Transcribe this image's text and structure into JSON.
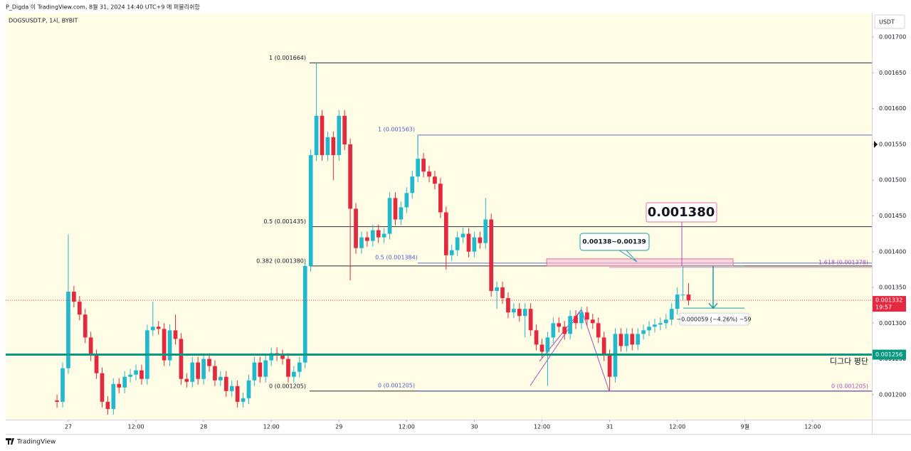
{
  "header": {
    "publisher": "P_Digda 이 TradingView.com, 8월 31, 2024 14:40 UTC+9 에 퍼블리쉬함",
    "brand": "TradingView"
  },
  "chart_data": {
    "type": "candlestick",
    "symbol": "DOGSUSDT.P, 1시, BYBIT",
    "currency": "USDT",
    "up_color": "#22b8cf",
    "down_color": "#e3283f",
    "xlim": [
      -11.1,
      142.5
    ],
    "xticks": [
      {
        "value": 0,
        "label": "27"
      },
      {
        "value": 12,
        "label": "12:00"
      },
      {
        "value": 24,
        "label": "28"
      },
      {
        "value": 36,
        "label": "12:00"
      },
      {
        "value": 48,
        "label": "29"
      },
      {
        "value": 60,
        "label": "12:00"
      },
      {
        "value": 72,
        "label": "30"
      },
      {
        "value": 84,
        "label": "12:00"
      },
      {
        "value": 96,
        "label": "31"
      },
      {
        "value": 108,
        "label": "12:00"
      },
      {
        "value": 120,
        "label": "9월"
      },
      {
        "value": 132,
        "label": "12:00"
      }
    ],
    "ylim": [
      0.001165,
      0.001734
    ],
    "yticks": [
      {
        "value": 0.0012,
        "label": "0.001200"
      },
      {
        "value": 0.00125,
        "label": "0.001250"
      },
      {
        "value": 0.0013,
        "label": "0.001300"
      },
      {
        "value": 0.00135,
        "label": "0.001350"
      },
      {
        "value": 0.0014,
        "label": "0.001400"
      },
      {
        "value": 0.00145,
        "label": "0.001450"
      },
      {
        "value": 0.0015,
        "label": "0.001500"
      },
      {
        "value": 0.00155,
        "label": "0.001550"
      },
      {
        "value": 0.0016,
        "label": "0.001600"
      },
      {
        "value": 0.00165,
        "label": "0.001650"
      },
      {
        "value": 0.0017,
        "label": "0.001700"
      }
    ],
    "grid": false,
    "x": [
      -2,
      -1,
      0,
      1,
      2,
      3,
      4,
      5,
      6,
      7,
      8,
      9,
      10,
      11,
      12,
      13,
      14,
      15,
      16,
      17,
      18,
      19,
      20,
      21,
      22,
      23,
      24,
      25,
      26,
      27,
      28,
      29,
      30,
      31,
      32,
      33,
      34,
      35,
      36,
      37,
      38,
      39,
      40,
      41,
      42,
      43,
      44,
      45,
      46,
      47,
      48,
      49,
      50,
      51,
      52,
      53,
      54,
      55,
      56,
      57,
      58,
      59,
      60,
      61,
      62,
      63,
      64,
      65,
      66,
      67,
      68,
      69,
      70,
      71,
      72,
      73,
      74,
      75,
      76,
      77,
      78,
      79,
      80,
      81,
      82,
      83,
      84,
      85,
      86,
      87,
      88,
      89,
      90,
      91,
      92,
      93,
      94,
      95,
      96,
      97,
      98,
      99,
      100,
      101,
      102,
      103,
      104,
      105,
      106,
      107,
      108,
      109,
      110
    ],
    "open": [
      0.001192,
      0.00119,
      0.001237,
      0.001344,
      0.00133,
      0.001312,
      0.00128,
      0.001255,
      0.00123,
      0.00119,
      0.00118,
      0.001215,
      0.00121,
      0.001225,
      0.001228,
      0.001234,
      0.001222,
      0.00129,
      0.001295,
      0.001292,
      0.001248,
      0.00129,
      0.001278,
      0.001222,
      0.001218,
      0.001245,
      0.001222,
      0.00125,
      0.00124,
      0.00122,
      0.001225,
      0.001205,
      0.001212,
      0.00119,
      0.001195,
      0.00122,
      0.001245,
      0.001225,
      0.001248,
      0.001258,
      0.001255,
      0.00125,
      0.001225,
      0.001232,
      0.001245,
      0.00138,
      0.001535,
      0.00159,
      0.001535,
      0.00156,
      0.001535,
      0.00159,
      0.00155,
      0.00146,
      0.001405,
      0.00142,
      0.001415,
      0.00143,
      0.00142,
      0.001425,
      0.001475,
      0.001445,
      0.001462,
      0.001482,
      0.001505,
      0.00153,
      0.001512,
      0.001505,
      0.001495,
      0.001455,
      0.001395,
      0.001402,
      0.00142,
      0.001425,
      0.0014,
      0.00142,
      0.001412,
      0.001445,
      0.001345,
      0.00135,
      0.001335,
      0.001315,
      0.00132,
      0.00131,
      0.00132,
      0.00129,
      0.00127,
      0.00126,
      0.00128,
      0.0013,
      0.001295,
      0.001285,
      0.00131,
      0.0013,
      0.001315,
      0.001305,
      0.0013,
      0.00128,
      0.001255,
      0.001225,
      0.001285,
      0.001268,
      0.001285,
      0.00127,
      0.001285,
      0.00129,
      0.001295,
      0.001298,
      0.0013,
      0.001305,
      0.00132,
      0.00134,
      0.00134
    ],
    "high": [
      0.0012,
      0.001245,
      0.001424,
      0.001352,
      0.001338,
      0.00132,
      0.001288,
      0.001263,
      0.001238,
      0.001198,
      0.001223,
      0.001223,
      0.001233,
      0.001236,
      0.001242,
      0.001242,
      0.001298,
      0.00133,
      0.001303,
      0.0013,
      0.001298,
      0.001312,
      0.001286,
      0.00123,
      0.001253,
      0.001253,
      0.001258,
      0.001258,
      0.001248,
      0.001233,
      0.001233,
      0.00122,
      0.00122,
      0.001203,
      0.001228,
      0.001253,
      0.001253,
      0.001256,
      0.001266,
      0.001266,
      0.001263,
      0.001258,
      0.00124,
      0.001253,
      0.001388,
      0.001543,
      0.001664,
      0.001598,
      0.001568,
      0.001568,
      0.001598,
      0.001598,
      0.001558,
      0.001468,
      0.001428,
      0.001428,
      0.001438,
      0.001438,
      0.001433,
      0.001483,
      0.001483,
      0.00147,
      0.00149,
      0.001513,
      0.001563,
      0.001538,
      0.00152,
      0.001513,
      0.001503,
      0.001463,
      0.00141,
      0.001428,
      0.001433,
      0.001433,
      0.001428,
      0.001428,
      0.001475,
      0.001453,
      0.001358,
      0.001358,
      0.001343,
      0.001328,
      0.001328,
      0.001328,
      0.001328,
      0.001298,
      0.001278,
      0.001288,
      0.001308,
      0.001308,
      0.001303,
      0.001318,
      0.001318,
      0.001323,
      0.001323,
      0.001313,
      0.001308,
      0.001288,
      0.001263,
      0.001293,
      0.001293,
      0.001293,
      0.001293,
      0.001293,
      0.001298,
      0.001303,
      0.001306,
      0.001308,
      0.001313,
      0.001328,
      0.00135,
      0.00138,
      0.001356
    ],
    "low": [
      0.001182,
      0.001182,
      0.001229,
      0.001322,
      0.001304,
      0.001272,
      0.001247,
      0.001222,
      0.001182,
      0.001172,
      0.001172,
      0.001202,
      0.001202,
      0.001217,
      0.00122,
      0.001214,
      0.001214,
      0.001282,
      0.001284,
      0.00124,
      0.00124,
      0.00127,
      0.001214,
      0.00121,
      0.00121,
      0.001214,
      0.001214,
      0.001232,
      0.001212,
      0.001212,
      0.001197,
      0.001197,
      0.001182,
      0.001182,
      0.001187,
      0.001212,
      0.001217,
      0.001217,
      0.00124,
      0.001247,
      0.001242,
      0.001217,
      0.001217,
      0.001224,
      0.001237,
      0.001372,
      0.001527,
      0.001527,
      0.001527,
      0.0015,
      0.001527,
      0.001542,
      0.00136,
      0.001397,
      0.001397,
      0.001407,
      0.001407,
      0.001412,
      0.001412,
      0.001417,
      0.001437,
      0.001437,
      0.001454,
      0.001474,
      0.001497,
      0.001504,
      0.001497,
      0.001487,
      0.001447,
      0.001375,
      0.001387,
      0.001394,
      0.001412,
      0.001392,
      0.001392,
      0.001404,
      0.001404,
      0.001337,
      0.00132,
      0.001327,
      0.001307,
      0.001307,
      0.001302,
      0.00128,
      0.001282,
      0.001262,
      0.001252,
      0.001212,
      0.001272,
      0.001287,
      0.001277,
      0.001277,
      0.001292,
      0.001292,
      0.001297,
      0.001292,
      0.001272,
      0.001247,
      0.001205,
      0.001217,
      0.00126,
      0.00126,
      0.001262,
      0.001262,
      0.001277,
      0.001282,
      0.001287,
      0.00129,
      0.001292,
      0.001297,
      0.001312,
      0.001332,
      0.001325
    ],
    "close": [
      0.00119,
      0.001237,
      0.001344,
      0.00133,
      0.001312,
      0.00128,
      0.001255,
      0.00123,
      0.00119,
      0.00118,
      0.001215,
      0.00121,
      0.001225,
      0.001228,
      0.001234,
      0.001222,
      0.00129,
      0.001295,
      0.001292,
      0.001248,
      0.00129,
      0.001278,
      0.001222,
      0.001218,
      0.001245,
      0.001222,
      0.00125,
      0.00124,
      0.00122,
      0.001225,
      0.001205,
      0.001212,
      0.00119,
      0.001195,
      0.00122,
      0.001245,
      0.001225,
      0.001248,
      0.001258,
      0.001255,
      0.00125,
      0.001225,
      0.001232,
      0.001245,
      0.00138,
      0.001535,
      0.00159,
      0.001535,
      0.00156,
      0.001535,
      0.00159,
      0.00155,
      0.00146,
      0.001405,
      0.00142,
      0.001415,
      0.00143,
      0.00142,
      0.001425,
      0.001475,
      0.001445,
      0.001462,
      0.001482,
      0.001505,
      0.00153,
      0.001512,
      0.001505,
      0.001495,
      0.001455,
      0.001395,
      0.001402,
      0.00142,
      0.001425,
      0.0014,
      0.00142,
      0.001412,
      0.001445,
      0.001345,
      0.00135,
      0.001335,
      0.001315,
      0.00132,
      0.00131,
      0.00132,
      0.00129,
      0.00127,
      0.00126,
      0.00128,
      0.0013,
      0.001295,
      0.001285,
      0.00131,
      0.0013,
      0.001315,
      0.001305,
      0.0013,
      0.00128,
      0.001255,
      0.001225,
      0.001285,
      0.001268,
      0.001285,
      0.00127,
      0.001285,
      0.00129,
      0.001295,
      0.001298,
      0.0013,
      0.001305,
      0.00132,
      0.00134,
      0.00134,
      0.001332
    ],
    "levels": [
      {
        "label": "1 (0.001664)",
        "value": 0.001664,
        "color": "#131722",
        "group": "left"
      },
      {
        "label": "0.5 (0.001435)",
        "value": 0.001435,
        "color": "#131722",
        "group": "left"
      },
      {
        "label": "0.382 (0.001380)",
        "value": 0.00138,
        "color": "#131722",
        "group": "left"
      },
      {
        "label": "0 (0.001205)",
        "value": 0.001205,
        "color": "#131722",
        "group": "left"
      },
      {
        "label": "1 (0.001563)",
        "value": 0.001563,
        "color": "#4a5bd4",
        "group": "mid"
      },
      {
        "label": "0.5 (0.001384)",
        "value": 0.001384,
        "color": "#4a5bd4",
        "group": "mid"
      },
      {
        "label": "0 (0.001205)",
        "value": 0.001205,
        "color": "#4a5bd4",
        "group": "mid"
      },
      {
        "label": "1.618 (0.001378)",
        "value": 0.001378,
        "color": "#a64fb8",
        "group": "right"
      },
      {
        "label": "0 (0.001205)",
        "value": 0.001205,
        "color": "#a64fb8",
        "group": "right"
      }
    ],
    "average": {
      "label": "디그다 평단",
      "value": 0.001256,
      "tag": "0.001256",
      "color": "#089981"
    },
    "last": {
      "value": 0.001332,
      "tag": "0.001332",
      "countdown": "19:57",
      "color": "#e3283f"
    },
    "zone": {
      "label": "0.00138~0.00139",
      "low": 0.00138,
      "high": 0.00139
    },
    "target": {
      "label": "0.001380",
      "value": 0.00138
    },
    "measure": {
      "label": "−0.000059 (−4.26%) −59",
      "from": 0.00138,
      "to": 0.001321
    }
  }
}
